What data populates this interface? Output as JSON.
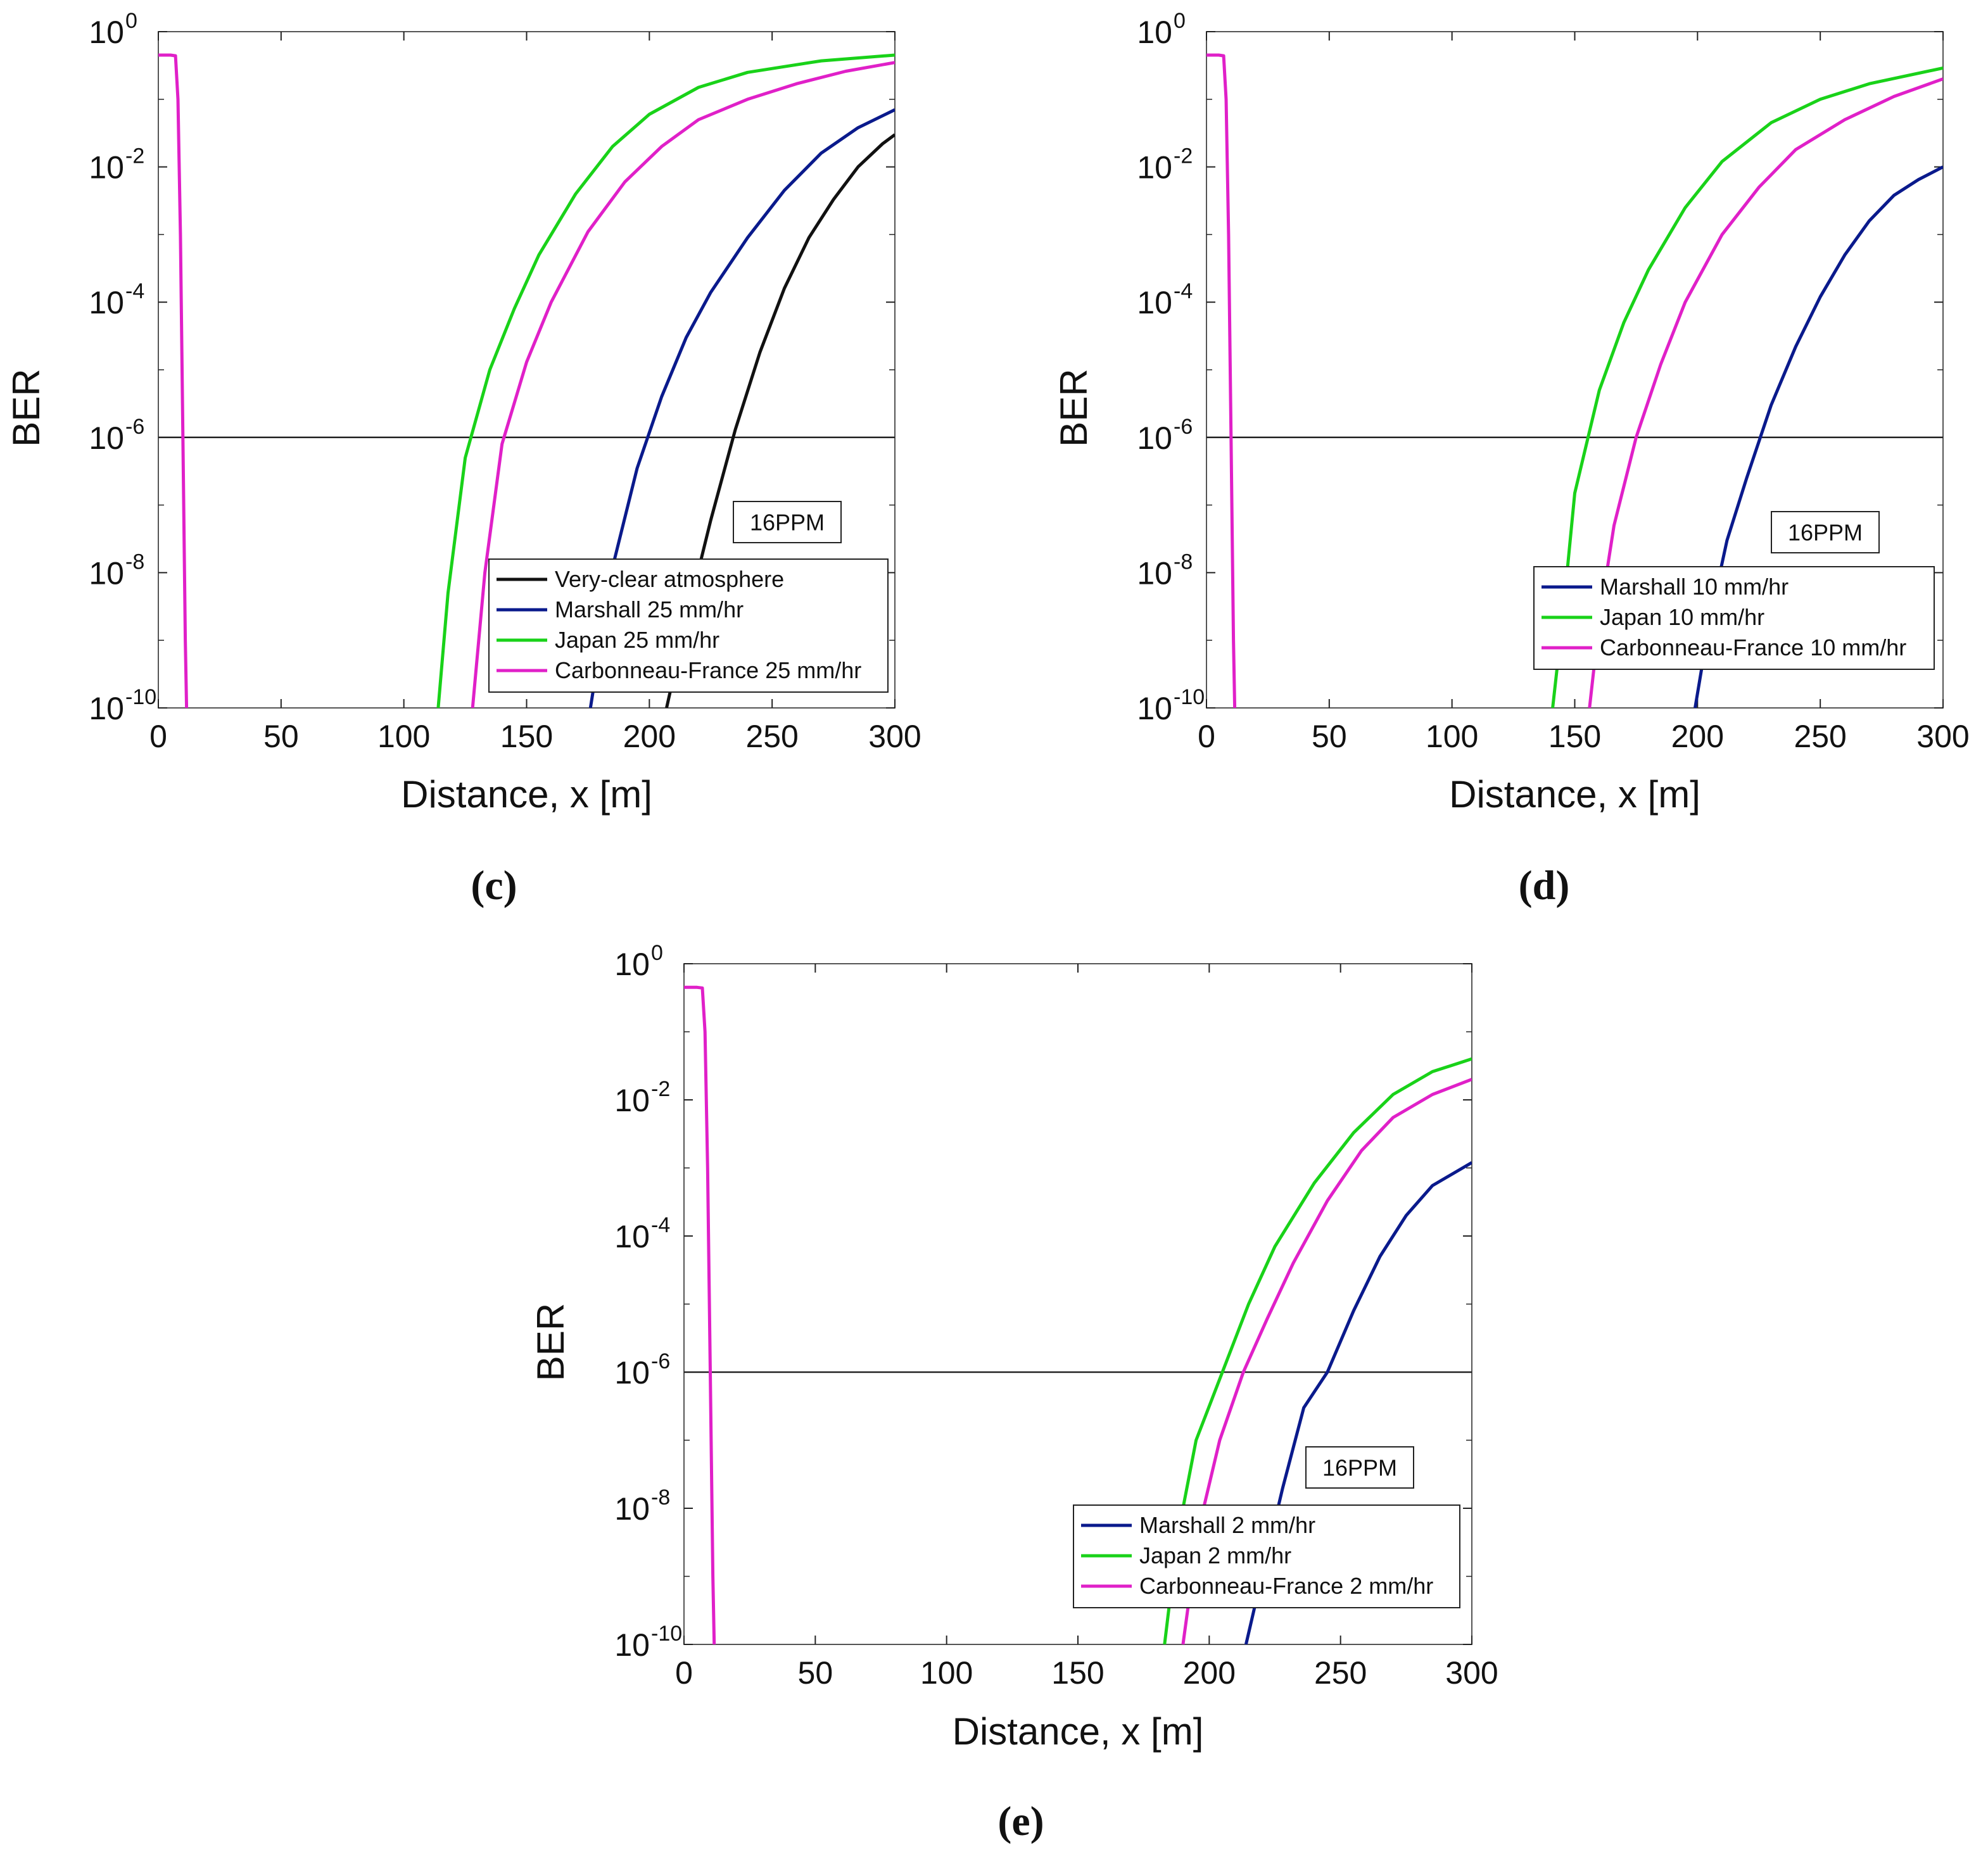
{
  "chart_data": [
    {
      "panel_label": "c",
      "type": "line",
      "xscale": "linear",
      "yscale": "log",
      "xlim": [
        0,
        300
      ],
      "ylim": [
        1e-10,
        1
      ],
      "xlabel": "Distance, x [m]",
      "ylabel": "BER",
      "x_ticks": [
        "0",
        "50",
        "100",
        "150",
        "200",
        "250",
        "300"
      ],
      "y_ticks": [
        "-10",
        "-8",
        "-6",
        "-4",
        "-2",
        "0"
      ],
      "grid": false,
      "threshold": 1e-06,
      "annotation": "16PPM",
      "legend_position": "bottom-right",
      "series": [
        {
          "name": "Very-clear atmosphere",
          "color": "#111111",
          "x": [
            207,
            215,
            225,
            235,
            245,
            255,
            265,
            275,
            285,
            295,
            300
          ],
          "y": [
            1e-10,
            2e-09,
            6e-08,
            1.3e-06,
            1.8e-05,
            0.00016,
            0.0009,
            0.0033,
            0.01,
            0.022,
            0.03
          ]
        },
        {
          "name": "Marshall 25 mm/hr",
          "color": "#0a1a8c",
          "x": [
            176,
            185,
            195,
            205,
            215,
            225,
            240,
            255,
            270,
            285,
            300
          ],
          "y": [
            1e-10,
            1.2e-08,
            3.5e-07,
            4e-06,
            3e-05,
            0.00014,
            0.0009,
            0.0045,
            0.016,
            0.038,
            0.07
          ]
        },
        {
          "name": "Japan 25 mm/hr",
          "color": "#19d219",
          "x": [
            114,
            118,
            125,
            135,
            145,
            155,
            170,
            185,
            200,
            220,
            240,
            270,
            300
          ],
          "y": [
            1e-10,
            5e-09,
            5e-07,
            1e-05,
            8e-05,
            0.0005,
            0.004,
            0.02,
            0.06,
            0.15,
            0.25,
            0.37,
            0.45
          ]
        },
        {
          "name": "Carbonneau-France 25 mm/hr",
          "color": "#e020c8",
          "x": [
            0,
            5,
            7,
            8,
            9,
            10,
            11,
            11.5
          ],
          "y": [
            0.45,
            0.45,
            0.44,
            0.1,
            0.001,
            1e-06,
            1e-09,
            1e-10
          ]
        },
        {
          "name": "Carbonneau-France 25 mm/hr",
          "color": "#e020c8",
          "x": [
            128,
            133,
            140,
            150,
            160,
            175,
            190,
            205,
            220,
            240,
            260,
            280,
            300
          ],
          "y": [
            1e-10,
            1e-08,
            8e-07,
            1.3e-05,
            0.0001,
            0.0011,
            0.006,
            0.02,
            0.05,
            0.1,
            0.17,
            0.26,
            0.35
          ]
        }
      ]
    },
    {
      "panel_label": "d",
      "type": "line",
      "xscale": "linear",
      "yscale": "log",
      "xlim": [
        0,
        300
      ],
      "ylim": [
        1e-10,
        1
      ],
      "xlabel": "Distance, x [m]",
      "ylabel": "BER",
      "x_ticks": [
        "0",
        "50",
        "100",
        "150",
        "200",
        "250",
        "300"
      ],
      "y_ticks": [
        "-10",
        "-8",
        "-6",
        "-4",
        "-2",
        "0"
      ],
      "grid": false,
      "threshold": 1e-06,
      "annotation": "16PPM",
      "legend_position": "bottom-right",
      "series": [
        {
          "name": "Marshall 10 mm/hr",
          "color": "#0a1a8c",
          "x": [
            199,
            205,
            212,
            220,
            230,
            240,
            250,
            260,
            270,
            280,
            290,
            300
          ],
          "y": [
            1e-10,
            2e-09,
            3e-08,
            2.5e-07,
            3e-06,
            2.2e-05,
            0.00012,
            0.0005,
            0.0016,
            0.0038,
            0.0065,
            0.01
          ]
        },
        {
          "name": "Japan 10 mm/hr",
          "color": "#19d219",
          "x": [
            141,
            145,
            150,
            160,
            170,
            180,
            195,
            210,
            230,
            250,
            270,
            300
          ],
          "y": [
            1e-10,
            2e-09,
            1.5e-07,
            5e-06,
            5e-05,
            0.0003,
            0.0025,
            0.012,
            0.045,
            0.1,
            0.17,
            0.29
          ]
        },
        {
          "name": "Carbonneau-France 10 mm/hr",
          "color": "#e020c8",
          "x": [
            0,
            5,
            7,
            8,
            9,
            10,
            11,
            11.5
          ],
          "y": [
            0.45,
            0.45,
            0.44,
            0.1,
            0.001,
            1e-06,
            1e-09,
            1e-10
          ]
        },
        {
          "name": "Carbonneau-France 10 mm/hr",
          "color": "#e020c8",
          "x": [
            156,
            160,
            166,
            175,
            185,
            195,
            210,
            225,
            240,
            260,
            280,
            300
          ],
          "y": [
            1e-10,
            2e-09,
            5e-08,
            1e-06,
            1.2e-05,
            0.0001,
            0.001,
            0.005,
            0.018,
            0.05,
            0.11,
            0.2
          ]
        }
      ]
    },
    {
      "panel_label": "e",
      "type": "line",
      "xscale": "linear",
      "yscale": "log",
      "xlim": [
        0,
        300
      ],
      "ylim": [
        1e-10,
        1
      ],
      "xlabel": "Distance, x [m]",
      "ylabel": "BER",
      "x_ticks": [
        "0",
        "50",
        "100",
        "150",
        "200",
        "250",
        "300"
      ],
      "y_ticks": [
        "-10",
        "-8",
        "-6",
        "-4",
        "-2",
        "0"
      ],
      "grid": false,
      "threshold": 1e-06,
      "annotation": "16PPM",
      "legend_position": "bottom-right",
      "series": [
        {
          "name": "Marshall 2 mm/hr",
          "color": "#0a1a8c",
          "x": [
            214,
            220,
            228,
            236,
            245,
            255,
            265,
            275,
            285,
            300
          ],
          "y": [
            1e-10,
            1e-09,
            2e-08,
            3e-07,
            1e-06,
            8e-06,
            5e-05,
            0.0002,
            0.00055,
            0.0012
          ]
        },
        {
          "name": "Japan 2 mm/hr",
          "color": "#19d219",
          "x": [
            183,
            188,
            195,
            205,
            215,
            225,
            240,
            255,
            270,
            285,
            300
          ],
          "y": [
            1e-10,
            4e-09,
            1e-07,
            1e-06,
            1e-05,
            7e-05,
            0.0006,
            0.0033,
            0.012,
            0.026,
            0.04
          ]
        },
        {
          "name": "Carbonneau-France 2 mm/hr",
          "color": "#e020c8",
          "x": [
            0,
            5,
            7,
            8,
            9,
            10,
            11,
            11.5
          ],
          "y": [
            0.45,
            0.45,
            0.44,
            0.1,
            0.001,
            1e-06,
            1e-09,
            1e-10
          ]
        },
        {
          "name": "Carbonneau-France 2 mm/hr",
          "color": "#e020c8",
          "x": [
            190,
            196,
            204,
            213,
            222,
            232,
            245,
            258,
            270,
            285,
            300
          ],
          "y": [
            1e-10,
            5e-09,
            1e-07,
            1e-06,
            6e-06,
            4e-05,
            0.00033,
            0.0018,
            0.0055,
            0.012,
            0.02
          ]
        }
      ]
    }
  ]
}
